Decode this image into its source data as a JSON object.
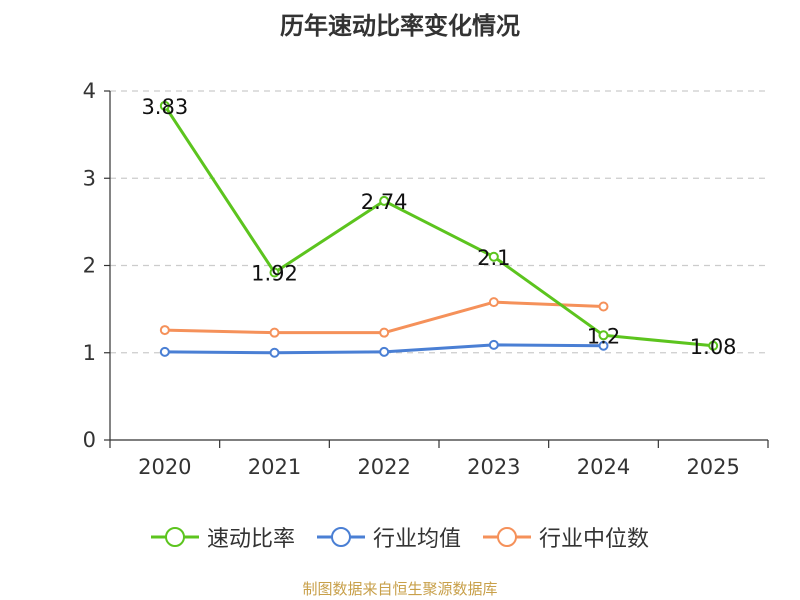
{
  "chart_data": {
    "type": "line",
    "title": "历年速动比率变化情况",
    "categories": [
      "2020",
      "2021",
      "2022",
      "2023",
      "2024",
      "2025"
    ],
    "ylim": [
      0,
      4
    ],
    "yticks": [
      0,
      1,
      2,
      3,
      4
    ],
    "grid": true,
    "legend_position": "bottom",
    "series": [
      {
        "name": "速动比率",
        "color": "#5cc41e",
        "values": [
          3.83,
          1.92,
          2.74,
          2.1,
          1.2,
          1.08
        ],
        "labels": [
          "3.83",
          "1.92",
          "2.74",
          "2.1",
          "1.2",
          "1.08"
        ]
      },
      {
        "name": "行业均值",
        "color": "#4a7fd4",
        "values": [
          1.01,
          1.0,
          1.01,
          1.09,
          1.08,
          null
        ]
      },
      {
        "name": "行业中位数",
        "color": "#f5915a",
        "values": [
          1.26,
          1.23,
          1.23,
          1.58,
          1.53,
          null
        ]
      }
    ]
  },
  "footer": {
    "source": "制图数据来自恒生聚源数据库"
  }
}
